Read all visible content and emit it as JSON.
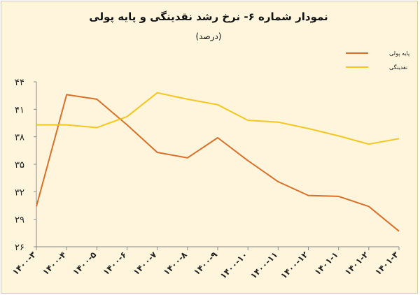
{
  "chart_data": {
    "type": "line",
    "title": "نمودار شماره ۶- نرخ رشد نقدینگی و پایه پولی",
    "subtitle": "(درصد)",
    "x": [
      "۱۴۰۰-۳",
      "۱۴۰۰-۴",
      "۱۴۰۰-۵",
      "۱۴۰۰-۶",
      "۱۴۰۰-۷",
      "۱۴۰۰-۸",
      "۱۴۰۰-۹",
      "۱۴۰۰-۱۰",
      "۱۴۰۰-۱۱",
      "۱۴۰۰-۱۲",
      "۱۴۰۱-۱",
      "۱۴۰۱-۲",
      "۱۴۰۱-۳"
    ],
    "yticks": [
      26,
      29,
      32,
      35,
      38,
      41,
      44
    ],
    "ytick_labels": [
      "۲۶",
      "۲۹",
      "۳۲",
      "۳۵",
      "۳۸",
      "۴۱",
      "۴۴"
    ],
    "ylim": [
      26,
      44
    ],
    "grid": false,
    "legend_position": "top-right",
    "series": [
      {
        "name": "پایه پولی",
        "color": "#d9702a",
        "values": [
          30.4,
          42.6,
          42.1,
          39.3,
          36.3,
          35.7,
          37.9,
          35.4,
          33.1,
          31.6,
          31.5,
          30.4,
          27.7
        ]
      },
      {
        "name": "نقدینگی",
        "color": "#f4c61e",
        "values": [
          39.3,
          39.3,
          39.0,
          40.2,
          42.8,
          42.1,
          41.5,
          39.8,
          39.6,
          38.9,
          38.1,
          37.2,
          37.8
        ]
      }
    ]
  }
}
